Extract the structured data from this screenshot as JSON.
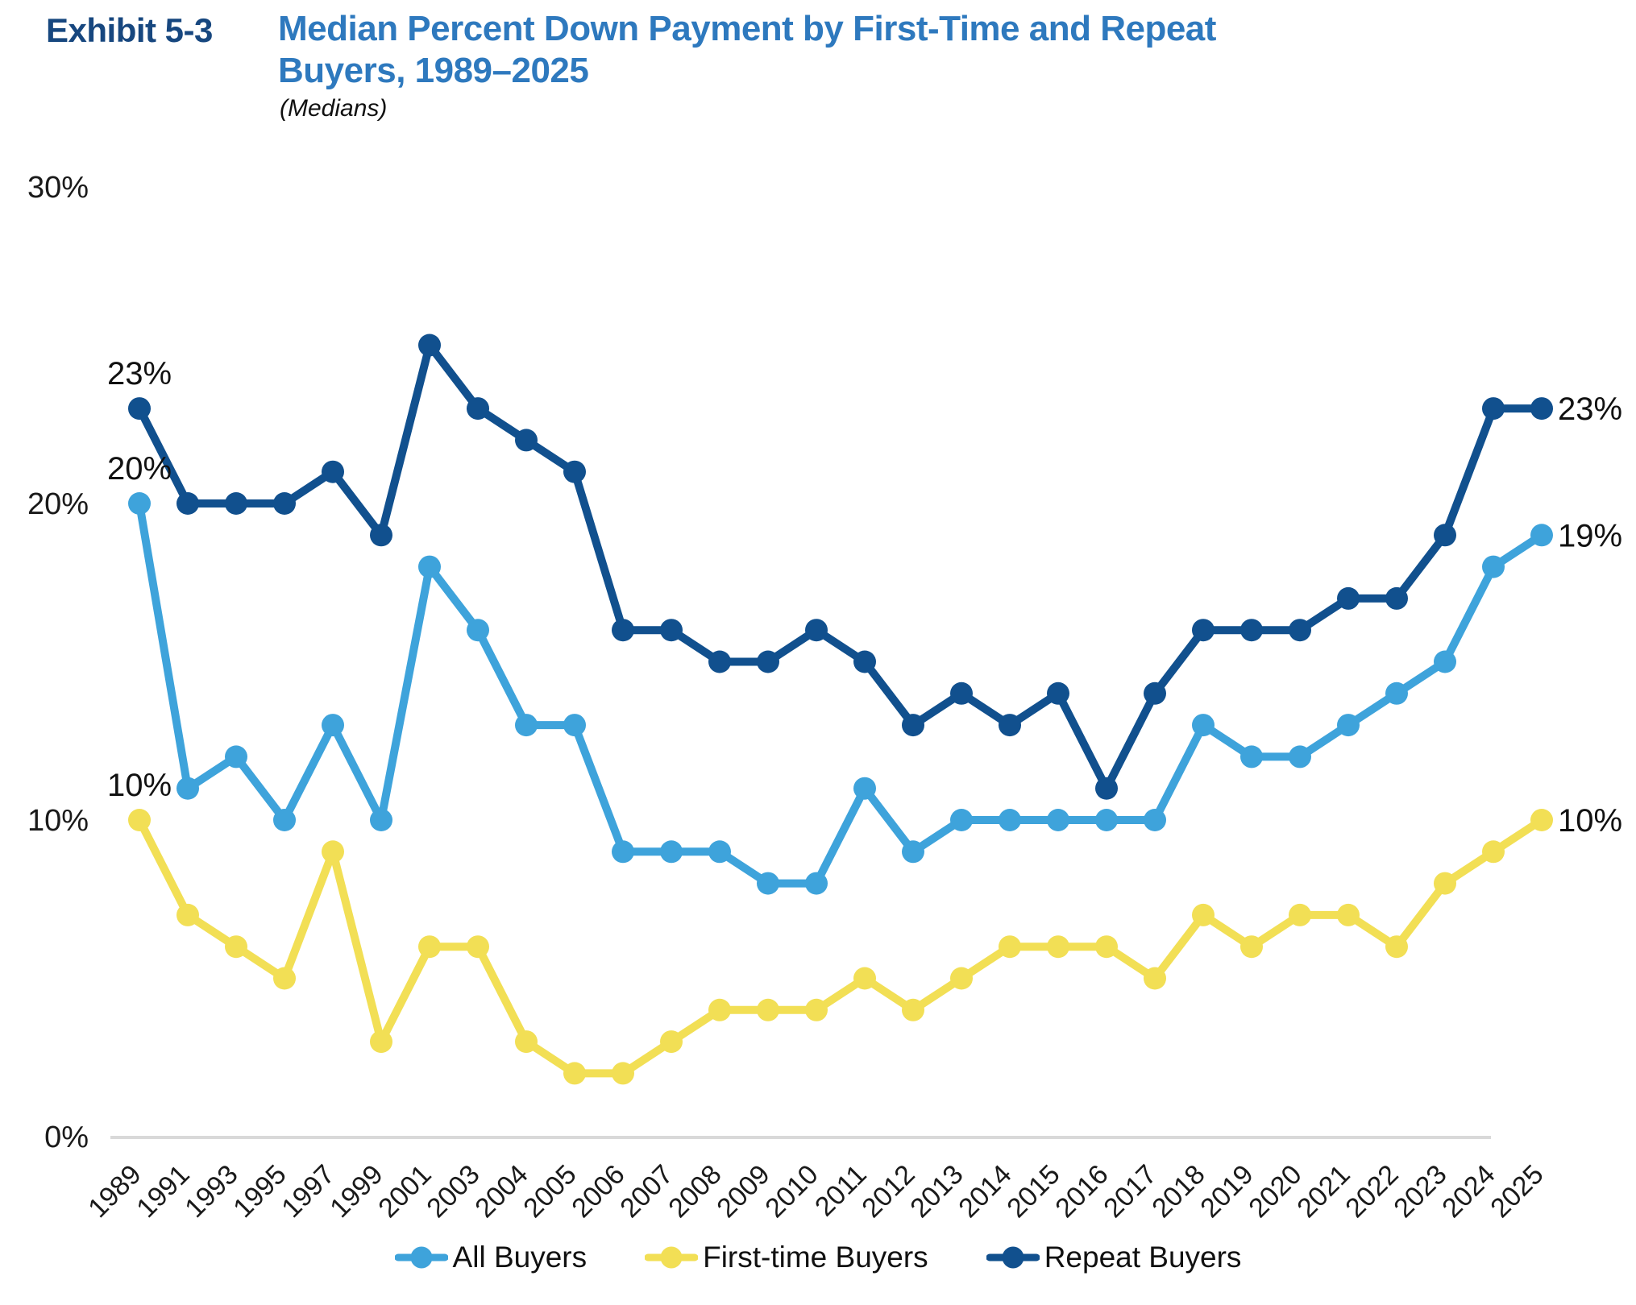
{
  "header": {
    "exhibit_label": "Exhibit 5-3",
    "title_line1": "Median Percent Down Payment by First-Time and Repeat",
    "title_line2": "Buyers, 1989–2025",
    "subtitle": "(Medians)"
  },
  "colors": {
    "all_buyers": "#3ea3db",
    "first_time_buyers": "#f2df55",
    "repeat_buyers": "#11508e",
    "axis_line": "#d9d9d9",
    "text": "#1a1a1a",
    "title_blue": "#2e79be",
    "exhibit_navy": "#17477f"
  },
  "chart_data": {
    "type": "line",
    "categories": [
      "1989",
      "1991",
      "1993",
      "1995",
      "1997",
      "1999",
      "2001",
      "2003",
      "2004",
      "2005",
      "2006",
      "2007",
      "2008",
      "2009",
      "2010",
      "2011",
      "2012",
      "2013",
      "2014",
      "2015",
      "2016",
      "2017",
      "2018",
      "2019",
      "2020",
      "2021",
      "2022",
      "2023",
      "2024",
      "2025"
    ],
    "series": [
      {
        "name": "All Buyers",
        "color": "#3ea3db",
        "values": [
          20,
          11,
          12,
          10,
          13,
          10,
          18,
          16,
          13,
          13,
          9,
          9,
          9,
          8,
          8,
          11,
          9,
          10,
          10,
          10,
          10,
          10,
          13,
          12,
          12,
          13,
          14,
          15,
          18,
          19
        ]
      },
      {
        "name": "First-time Buyers",
        "color": "#f2df55",
        "values": [
          10,
          7,
          6,
          5,
          9,
          3,
          6,
          6,
          3,
          2,
          2,
          3,
          4,
          4,
          4,
          5,
          4,
          5,
          6,
          6,
          6,
          5,
          7,
          6,
          7,
          7,
          6,
          8,
          9,
          10
        ]
      },
      {
        "name": "Repeat Buyers",
        "color": "#11508e",
        "values": [
          23,
          20,
          20,
          20,
          21,
          19,
          25,
          23,
          22,
          21,
          16,
          16,
          15,
          15,
          16,
          15,
          13,
          14,
          13,
          14,
          11,
          14,
          16,
          16,
          16,
          17,
          17,
          19,
          23,
          23
        ]
      }
    ],
    "ylim": [
      0,
      30
    ],
    "y_ticks": [
      {
        "label": "0%",
        "value": 0
      },
      {
        "label": "10%",
        "value": 10
      },
      {
        "label": "20%",
        "value": 20
      },
      {
        "label": "30%",
        "value": 30
      }
    ],
    "grid": "none",
    "legend_position": "bottom",
    "point_labels": [
      {
        "series": 2,
        "index": 0,
        "text": "23%",
        "side": "above"
      },
      {
        "series": 0,
        "index": 0,
        "text": "20%",
        "side": "above"
      },
      {
        "series": 1,
        "index": 0,
        "text": "10%",
        "side": "above"
      },
      {
        "series": 2,
        "index": 29,
        "text": "23%",
        "side": "right"
      },
      {
        "series": 0,
        "index": 29,
        "text": "19%",
        "side": "right"
      },
      {
        "series": 1,
        "index": 29,
        "text": "10%",
        "side": "right"
      }
    ]
  }
}
